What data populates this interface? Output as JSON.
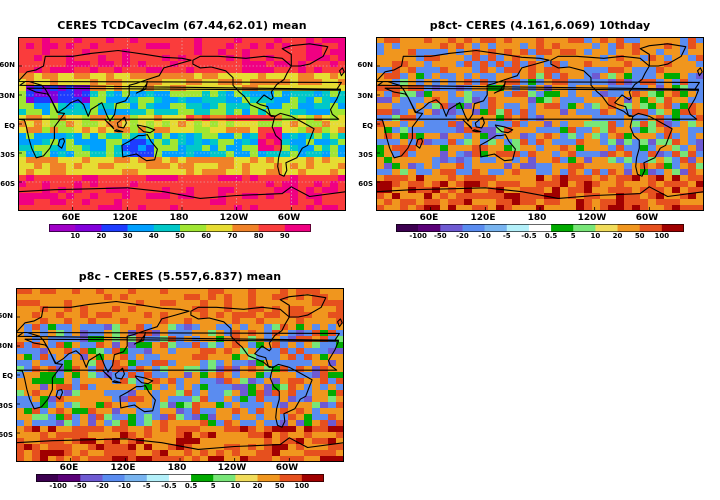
{
  "panels": [
    {
      "title": "CERES TCDCavecIm (67.44,62.01) mean",
      "lat_labels": [
        "60N",
        "30N",
        "EQ",
        "30S",
        "60S"
      ],
      "lon_labels": [
        "60E",
        "120E",
        "180",
        "120W",
        "60W"
      ],
      "colorbar": {
        "labels": [
          "10",
          "20",
          "30",
          "40",
          "50",
          "60",
          "70",
          "80",
          "90"
        ],
        "colors": [
          "#a000c8",
          "#8200dc",
          "#1e3cff",
          "#00a0ff",
          "#00c8c8",
          "#a0e632",
          "#e6dc32",
          "#f08228",
          "#fa3c3c",
          "#f00082"
        ]
      }
    },
    {
      "title": "p8ct- CERES (4.161,6.069) 10thday",
      "lat_labels": [
        "60N",
        "30N",
        "EQ",
        "30S",
        "60S"
      ],
      "lon_labels": [
        "60E",
        "120E",
        "180",
        "120W",
        "60W"
      ],
      "colorbar": {
        "labels": [
          "-100",
          "-50",
          "-20",
          "-10",
          "-5",
          "-0.5",
          "0.5",
          "5",
          "10",
          "20",
          "50",
          "100"
        ],
        "colors": [
          "#3c0050",
          "#5a0078",
          "#6e5ad2",
          "#5a8cf0",
          "#78b4f0",
          "#b4f0fa",
          "#ffffff",
          "#00aa00",
          "#78e678",
          "#f0dc5a",
          "#f0961e",
          "#e6501e",
          "#a00000"
        ]
      }
    },
    {
      "title": "p8c - CERES (5.557,6.837) mean",
      "lat_labels": [
        "60N",
        "30N",
        "EQ",
        "30S",
        "60S"
      ],
      "lon_labels": [
        "60E",
        "120E",
        "180",
        "120W",
        "60W"
      ],
      "colorbar": {
        "labels": [
          "-100",
          "-50",
          "-20",
          "-10",
          "-5",
          "-0.5",
          "0.5",
          "5",
          "10",
          "20",
          "50",
          "100"
        ],
        "colors": [
          "#3c0050",
          "#5a0078",
          "#6e5ad2",
          "#5a8cf0",
          "#78b4f0",
          "#b4f0fa",
          "#ffffff",
          "#00aa00",
          "#78e678",
          "#f0dc5a",
          "#f0961e",
          "#e6501e",
          "#a00000"
        ]
      }
    }
  ]
}
